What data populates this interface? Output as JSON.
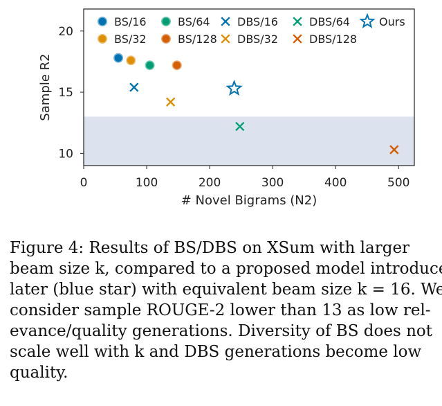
{
  "chart_data": {
    "type": "scatter",
    "xlabel": "# Novel Bigrams (N2)",
    "ylabel": "Sample R2",
    "xlim": [
      0,
      525
    ],
    "ylim": [
      9.0,
      21.8
    ],
    "xticks": [
      0,
      100,
      200,
      300,
      400,
      500
    ],
    "yticks": [
      10,
      15,
      20
    ],
    "low_quality_threshold": 13,
    "grid": false,
    "legend_position": "top",
    "series": [
      {
        "name": "BS/16",
        "marker": "circle",
        "color": "#0173b2",
        "x": 55,
        "y": 17.8
      },
      {
        "name": "BS/32",
        "marker": "circle",
        "color": "#de8f05",
        "x": 75,
        "y": 17.6
      },
      {
        "name": "BS/64",
        "marker": "circle",
        "color": "#029e73",
        "x": 105,
        "y": 17.2
      },
      {
        "name": "BS/128",
        "marker": "circle",
        "color": "#d55e00",
        "x": 148,
        "y": 17.2
      },
      {
        "name": "DBS/16",
        "marker": "x",
        "color": "#0173b2",
        "x": 80,
        "y": 15.4
      },
      {
        "name": "DBS/32",
        "marker": "x",
        "color": "#de8f05",
        "x": 138,
        "y": 14.2
      },
      {
        "name": "DBS/64",
        "marker": "x",
        "color": "#029e73",
        "x": 248,
        "y": 12.2
      },
      {
        "name": "DBS/128",
        "marker": "x",
        "color": "#d55e00",
        "x": 493,
        "y": 10.3
      },
      {
        "name": "Ours",
        "marker": "star",
        "color": "#0173b2",
        "x": 239,
        "y": 15.3
      }
    ],
    "legend_rows": [
      [
        "BS/16",
        "BS/64",
        "DBS/16",
        "DBS/64",
        "Ours"
      ],
      [
        "BS/32",
        "BS/128",
        "DBS/32",
        "DBS/128"
      ]
    ],
    "shade_color": "#dce3ee"
  },
  "caption": {
    "lines": [
      "Figure 4: Results of BS/DBS on XSum with larger",
      "beam size k, compared to a proposed model introduced",
      "later (blue star) with equivalent beam size k = 16. We",
      "consider sample ROUGE-2 lower than 13 as low rel-",
      "evance/quality generations. Diversity of BS does not",
      "scale well with k and DBS generations become low",
      "quality."
    ]
  }
}
